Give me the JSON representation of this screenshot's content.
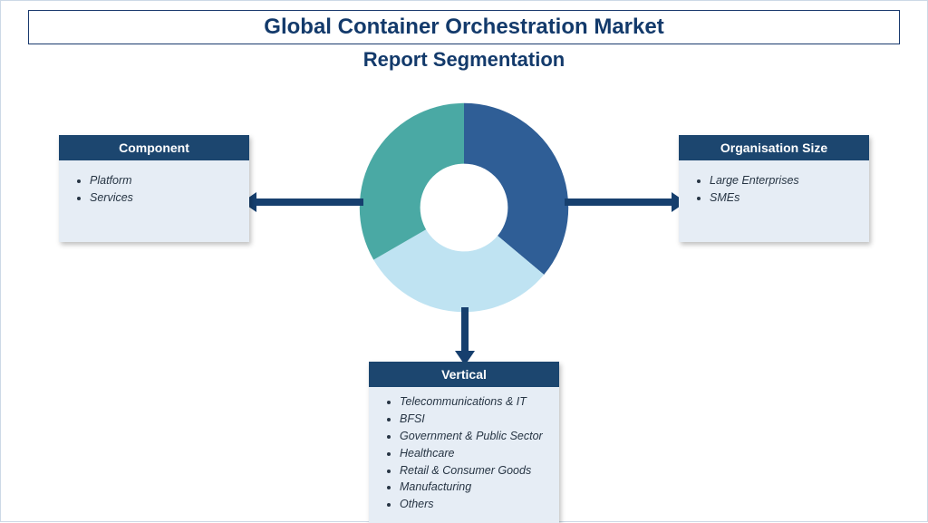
{
  "title": "Global Container Orchestration Market",
  "subtitle": "Report Segmentation",
  "colors": {
    "title_text": "#133a6b",
    "title_border": "#1a3a6e",
    "card_header_bg": "#1c466f",
    "card_header_text": "#ffffff",
    "card_body_bg": "#e6edf5",
    "card_body_text": "#273544",
    "arrow": "#163f6e",
    "page_border": "#cdd9e6",
    "background": "#ffffff"
  },
  "donut": {
    "type": "pie",
    "inner_radius_ratio": 0.42,
    "slices": [
      {
        "start_deg": 0,
        "end_deg": 130,
        "color": "#2f5e96"
      },
      {
        "start_deg": 130,
        "end_deg": 240,
        "color": "#bfe3f2"
      },
      {
        "start_deg": 240,
        "end_deg": 360,
        "color": "#4aa9a4"
      }
    ],
    "hole_color": "#ffffff"
  },
  "cards": {
    "left": {
      "header": "Component",
      "items": [
        "Platform",
        "Services"
      ]
    },
    "right": {
      "header": "Organisation Size",
      "items": [
        "Large Enterprises",
        "SMEs"
      ]
    },
    "bottom": {
      "header": "Vertical",
      "items": [
        "Telecommunications & IT",
        "BFSI",
        "Government & Public Sector",
        "Healthcare",
        "Retail & Consumer Goods",
        "Manufacturing",
        "Others"
      ]
    }
  }
}
